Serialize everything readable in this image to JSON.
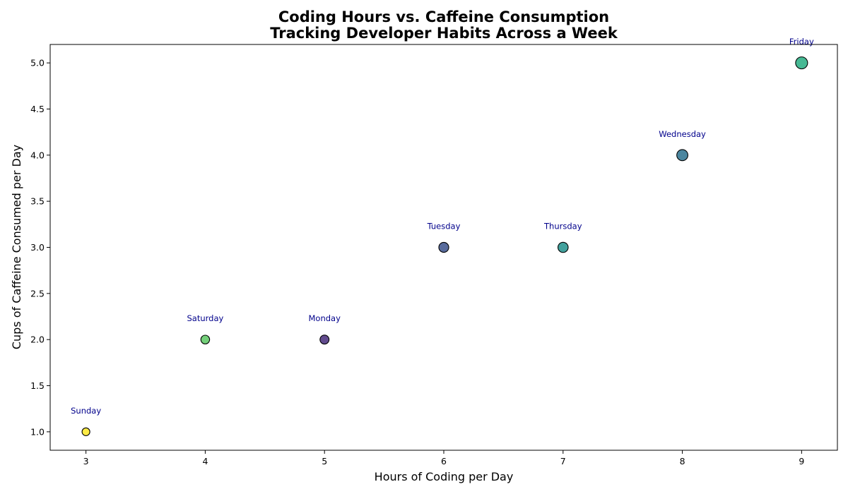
{
  "chart_data": {
    "type": "scatter",
    "title_lines": [
      "Coding Hours vs. Caffeine Consumption",
      "Tracking Developer Habits Across a Week"
    ],
    "xlabel": "Hours of Coding per Day",
    "ylabel": "Cups of Caffeine Consumed per Day",
    "xlim": [
      2.7,
      9.3
    ],
    "ylim": [
      0.8,
      5.2
    ],
    "x_ticks": [
      3,
      4,
      5,
      6,
      7,
      8,
      9
    ],
    "x_tick_labels": [
      "3",
      "4",
      "5",
      "6",
      "7",
      "8",
      "9"
    ],
    "y_ticks": [
      1.0,
      1.5,
      2.0,
      2.5,
      3.0,
      3.5,
      4.0,
      4.5,
      5.0
    ],
    "y_tick_labels": [
      "1.0",
      "1.5",
      "2.0",
      "2.5",
      "3.0",
      "3.5",
      "4.0",
      "4.5",
      "5.0"
    ],
    "grid": false,
    "points": [
      {
        "label": "Monday",
        "x": 5,
        "y": 2,
        "color": "#472c7a"
      },
      {
        "label": "Tuesday",
        "x": 6,
        "y": 3,
        "color": "#3b518b"
      },
      {
        "label": "Wednesday",
        "x": 8,
        "y": 4,
        "color": "#2c718e"
      },
      {
        "label": "Thursday",
        "x": 7,
        "y": 3,
        "color": "#21918c"
      },
      {
        "label": "Friday",
        "x": 9,
        "y": 5,
        "color": "#27ad81"
      },
      {
        "label": "Saturday",
        "x": 4,
        "y": 2,
        "color": "#5cc863"
      },
      {
        "label": "Sunday",
        "x": 3,
        "y": 1,
        "color": "#fde725"
      }
    ],
    "label_color": "#00008b"
  }
}
